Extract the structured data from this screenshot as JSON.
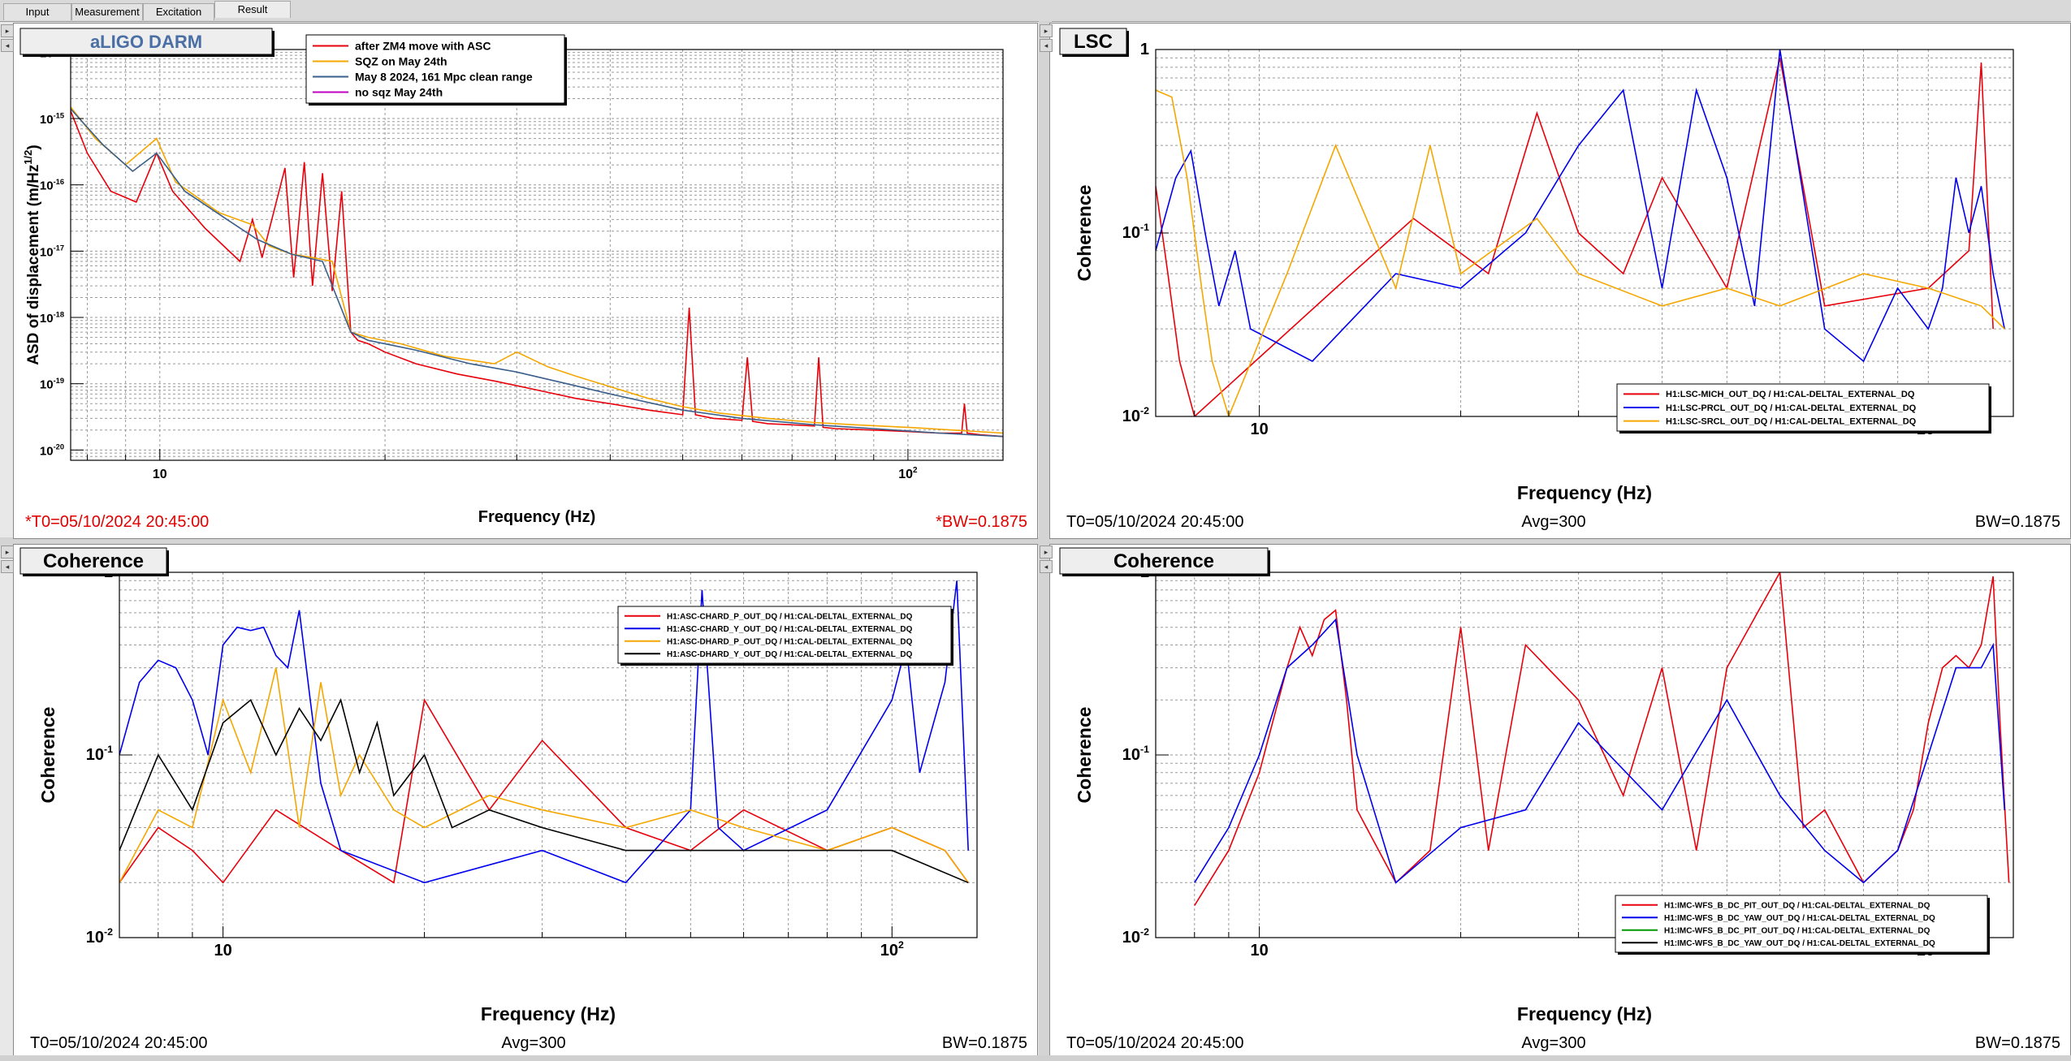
{
  "tabs": [
    "Input",
    "Measurement",
    "Excitation",
    "Result"
  ],
  "active_tab": "Result",
  "colors": {
    "red": "#e8000b",
    "orange": "#f5a700",
    "blue": "#0000ee",
    "steel": "#3a5f8a",
    "magenta": "#c000c0",
    "black": "#000000",
    "green": "#009900",
    "darkred": "#cc0000"
  },
  "panels": [
    {
      "title": "aLIGO DARM",
      "footer_left": "*T0=05/10/2024 20:45:00",
      "footer_center": "",
      "footer_right": "*BW=0.1875",
      "xlabel": "Frequency (Hz)",
      "ylabel": "ASD of displacement (m/Hz^{1/2})",
      "legend": [
        "after ZM4 move with ASC",
        "SQZ on May 24th",
        "May 8 2024, 161 Mpc clean range",
        "no sqz May 24th"
      ]
    },
    {
      "title": "LSC",
      "footer_left": "T0=05/10/2024 20:45:00",
      "footer_center": "Avg=300",
      "footer_right": "BW=0.1875",
      "xlabel": "Frequency (Hz)",
      "ylabel": "Coherence",
      "legend": [
        "H1:LSC-MICH_OUT_DQ / H1:CAL-DELTAL_EXTERNAL_DQ",
        "H1:LSC-PRCL_OUT_DQ / H1:CAL-DELTAL_EXTERNAL_DQ",
        "H1:LSC-SRCL_OUT_DQ / H1:CAL-DELTAL_EXTERNAL_DQ"
      ]
    },
    {
      "title": "Coherence",
      "footer_left": "T0=05/10/2024 20:45:00",
      "footer_center": "Avg=300",
      "footer_right": "BW=0.1875",
      "xlabel": "Frequency (Hz)",
      "ylabel": "Coherence",
      "legend": [
        "H1:ASC-CHARD_P_OUT_DQ / H1:CAL-DELTAL_EXTERNAL_DQ",
        "H1:ASC-CHARD_Y_OUT_DQ / H1:CAL-DELTAL_EXTERNAL_DQ",
        "H1:ASC-DHARD_P_OUT_DQ / H1:CAL-DELTAL_EXTERNAL_DQ",
        "H1:ASC-DHARD_Y_OUT_DQ / H1:CAL-DELTAL_EXTERNAL_DQ"
      ]
    },
    {
      "title": "Coherence",
      "footer_left": "T0=05/10/2024 20:45:00",
      "footer_center": "Avg=300",
      "footer_right": "BW=0.1875",
      "xlabel": "Frequency (Hz)",
      "ylabel": "Coherence",
      "legend": [
        "H1:IMC-WFS_B_DC_PIT_OUT_DQ / H1:CAL-DELTAL_EXTERNAL_DQ",
        "H1:IMC-WFS_B_DC_YAW_OUT_DQ / H1:CAL-DELTAL_EXTERNAL_DQ",
        "H1:IMC-WFS_B_DC_PIT_OUT_DQ / H1:CAL-DELTAL_EXTERNAL_DQ",
        "H1:IMC-WFS_B_DC_YAW_OUT_DQ / H1:CAL-DELTAL_EXTERNAL_DQ"
      ]
    }
  ],
  "chart_data": [
    {
      "type": "line",
      "title": "aLIGO DARM",
      "xlabel": "Frequency (Hz)",
      "ylabel": "ASD of displacement (m/Hz^{1/2})",
      "x_scale": "log",
      "y_scale": "log",
      "xlim": [
        7.6,
        134
      ],
      "ylim": [
        7e-21,
        1.1e-14
      ],
      "x_ticks": [
        "10",
        "10^2"
      ],
      "y_ticks": [
        "10^-14",
        "10^-15",
        "10^-16",
        "10^-17",
        "10^-18",
        "10^-19",
        "10^-20"
      ],
      "grid": true,
      "legend_position": "top-left",
      "series": [
        {
          "name": "after ZM4 move with ASC",
          "color": "#e8000b",
          "x": [
            7.6,
            8,
            8.6,
            9.3,
            9.9,
            10.4,
            11.5,
            12.8,
            13.3,
            13.7,
            14.7,
            15.1,
            15.6,
            16,
            16.5,
            17,
            17.5,
            18,
            18.4,
            19,
            20,
            22,
            25,
            28,
            32,
            36,
            40,
            45,
            50,
            51,
            52,
            55,
            60,
            61,
            62,
            65,
            70,
            75,
            76,
            77,
            80,
            90,
            100,
            110,
            118,
            119,
            120,
            125,
            134
          ],
          "y": [
            1.3e-15,
            3e-16,
            8e-17,
            5.5e-17,
            3e-16,
            8e-17,
            2.2e-17,
            7e-18,
            3e-17,
            8e-18,
            1.8e-16,
            4e-18,
            2.2e-16,
            3e-18,
            1.5e-16,
            2.5e-18,
            8e-17,
            6e-19,
            4.5e-19,
            4e-19,
            3e-19,
            2e-19,
            1.4e-19,
            1.1e-19,
            8e-20,
            6e-20,
            5e-20,
            4e-20,
            3.4e-20,
            1.4e-18,
            3.4e-20,
            3e-20,
            2.8e-20,
            2.5e-19,
            2.7e-20,
            2.5e-20,
            2.4e-20,
            2.3e-20,
            2.5e-19,
            2.2e-20,
            2.1e-20,
            2e-20,
            1.9e-20,
            1.8e-20,
            1.8e-20,
            5e-20,
            1.8e-20,
            1.7e-20,
            1.6e-20
          ]
        },
        {
          "name": "SQZ on May 24th",
          "color": "#f5a700",
          "x": [
            7.6,
            8.2,
            9,
            9.9,
            10.5,
            12,
            13.3,
            14,
            15,
            16,
            17,
            18,
            19,
            21,
            24,
            28,
            30,
            33,
            36,
            40,
            45,
            50,
            56,
            65,
            75,
            85,
            100,
            115,
            134
          ],
          "y": [
            1.5e-15,
            5e-16,
            2e-16,
            5e-16,
            1.1e-16,
            3.8e-17,
            2.5e-17,
            1.2e-17,
            9e-18,
            8e-18,
            7e-18,
            6e-19,
            5e-19,
            4e-19,
            2.6e-19,
            2e-19,
            3e-19,
            1.8e-19,
            1.3e-19,
            9e-20,
            6e-20,
            4.5e-20,
            3.6e-20,
            3e-20,
            2.6e-20,
            2.4e-20,
            2.2e-20,
            2e-20,
            1.8e-20
          ]
        },
        {
          "name": "May 8 2024, 161 Mpc clean range",
          "color": "#3a5f8a",
          "x": [
            7.6,
            8.4,
            9.2,
            9.9,
            10.8,
            12.3,
            13.5,
            15,
            16.5,
            18,
            19,
            22,
            26,
            30,
            35,
            40,
            50,
            60,
            75,
            90,
            110,
            134
          ],
          "y": [
            1.4e-15,
            4e-16,
            1.6e-16,
            3e-16,
            8e-17,
            3e-17,
            1.5e-17,
            9e-18,
            7e-18,
            6e-19,
            4.5e-19,
            3.2e-19,
            2e-19,
            1.5e-19,
            1e-19,
            7e-20,
            4e-20,
            3e-20,
            2.4e-20,
            2.1e-20,
            1.8e-20,
            1.6e-20
          ]
        },
        {
          "name": "no sqz May 24th",
          "color": "#c000c0",
          "x": [],
          "y": []
        }
      ]
    },
    {
      "type": "line",
      "title": "LSC",
      "xlabel": "Frequency (Hz)",
      "ylabel": "Coherence",
      "x_scale": "log",
      "y_scale": "log",
      "xlim": [
        7,
        134
      ],
      "ylim": [
        0.01,
        1
      ],
      "x_ticks": [
        "10",
        "10^2"
      ],
      "y_ticks": [
        "1",
        "10^-1",
        "10^-2"
      ],
      "grid": true,
      "legend_position": "bottom-right",
      "series": [
        {
          "name": "H1:LSC-MICH_OUT_DQ / H1:CAL-DELTAL_EXTERNAL_DQ",
          "color": "#e8000b",
          "x": [
            7,
            7.3,
            7.6,
            8,
            13,
            17,
            22,
            26,
            30,
            35,
            40,
            50,
            60,
            70,
            100,
            115,
            120,
            125
          ],
          "y": [
            0.18,
            0.06,
            0.02,
            0.01,
            0.05,
            0.12,
            0.06,
            0.45,
            0.1,
            0.06,
            0.2,
            0.05,
            0.9,
            0.04,
            0.05,
            0.08,
            0.85,
            0.03
          ]
        },
        {
          "name": "H1:LSC-PRCL_OUT_DQ / H1:CAL-DELTAL_EXTERNAL_DQ",
          "color": "#0000ee",
          "x": [
            7,
            7.5,
            7.9,
            8.3,
            8.7,
            9.2,
            9.7,
            12,
            16,
            20,
            25,
            30,
            35,
            40,
            45,
            50,
            55,
            60,
            70,
            80,
            90,
            100,
            105,
            110,
            115,
            120,
            125,
            130
          ],
          "y": [
            0.08,
            0.2,
            0.28,
            0.1,
            0.04,
            0.08,
            0.03,
            0.02,
            0.06,
            0.05,
            0.1,
            0.3,
            0.6,
            0.05,
            0.6,
            0.2,
            0.04,
            1.0,
            0.03,
            0.02,
            0.05,
            0.03,
            0.05,
            0.2,
            0.1,
            0.18,
            0.06,
            0.03
          ]
        },
        {
          "name": "H1:LSC-SRCL_OUT_DQ / H1:CAL-DELTAL_EXTERNAL_DQ",
          "color": "#f5a700",
          "x": [
            7,
            7.4,
            7.8,
            8.2,
            8.5,
            9,
            11,
            13,
            16,
            18,
            20,
            26,
            30,
            40,
            50,
            60,
            80,
            100,
            120,
            130
          ],
          "y": [
            0.6,
            0.55,
            0.2,
            0.05,
            0.02,
            0.01,
            0.06,
            0.3,
            0.05,
            0.3,
            0.06,
            0.12,
            0.06,
            0.04,
            0.05,
            0.04,
            0.06,
            0.05,
            0.04,
            0.03
          ]
        }
      ]
    },
    {
      "type": "line",
      "title": "Coherence",
      "xlabel": "Frequency (Hz)",
      "ylabel": "Coherence",
      "x_scale": "log",
      "y_scale": "log",
      "xlim": [
        7,
        134
      ],
      "ylim": [
        0.01,
        1
      ],
      "x_ticks": [
        "10",
        "10^2"
      ],
      "y_ticks": [
        "1",
        "10^-1",
        "10^-2"
      ],
      "grid": true,
      "legend_position": "top-right",
      "series": [
        {
          "name": "H1:ASC-CHARD_P_OUT_DQ / H1:CAL-DELTAL_EXTERNAL_DQ",
          "color": "#e8000b",
          "x": [
            7,
            8,
            9,
            10,
            12,
            15,
            18,
            20,
            25,
            30,
            40,
            50,
            60,
            80,
            100,
            120,
            130
          ],
          "y": [
            0.02,
            0.04,
            0.03,
            0.02,
            0.05,
            0.03,
            0.02,
            0.2,
            0.05,
            0.12,
            0.04,
            0.03,
            0.05,
            0.03,
            0.04,
            0.03,
            0.02
          ]
        },
        {
          "name": "H1:ASC-CHARD_Y_OUT_DQ / H1:CAL-DELTAL_EXTERNAL_DQ",
          "color": "#0000ee",
          "x": [
            7,
            7.5,
            8,
            8.5,
            9,
            9.5,
            10,
            10.5,
            11,
            11.5,
            12,
            12.5,
            13,
            13.5,
            14,
            15,
            20,
            30,
            40,
            50,
            52,
            55,
            60,
            80,
            100,
            105,
            110,
            120,
            125,
            130
          ],
          "y": [
            0.1,
            0.25,
            0.33,
            0.3,
            0.2,
            0.1,
            0.4,
            0.5,
            0.48,
            0.5,
            0.35,
            0.3,
            0.62,
            0.2,
            0.07,
            0.03,
            0.02,
            0.03,
            0.02,
            0.05,
            0.8,
            0.04,
            0.03,
            0.05,
            0.2,
            0.4,
            0.08,
            0.25,
            0.9,
            0.03
          ]
        },
        {
          "name": "H1:ASC-DHARD_P_OUT_DQ / H1:CAL-DELTAL_EXTERNAL_DQ",
          "color": "#f5a700",
          "x": [
            7,
            8,
            9,
            10,
            11,
            12,
            13,
            14,
            15,
            16,
            18,
            20,
            25,
            30,
            40,
            50,
            60,
            80,
            100,
            120,
            130
          ],
          "y": [
            0.02,
            0.05,
            0.04,
            0.2,
            0.08,
            0.3,
            0.04,
            0.25,
            0.06,
            0.1,
            0.05,
            0.04,
            0.06,
            0.05,
            0.04,
            0.05,
            0.04,
            0.03,
            0.04,
            0.03,
            0.02
          ]
        },
        {
          "name": "H1:ASC-DHARD_Y_OUT_DQ / H1:CAL-DELTAL_EXTERNAL_DQ",
          "color": "#000000",
          "x": [
            7,
            8,
            9,
            10,
            11,
            12,
            13,
            14,
            15,
            16,
            17,
            18,
            20,
            22,
            25,
            30,
            40,
            60,
            100,
            130
          ],
          "y": [
            0.03,
            0.1,
            0.05,
            0.15,
            0.2,
            0.1,
            0.18,
            0.12,
            0.2,
            0.08,
            0.15,
            0.06,
            0.1,
            0.04,
            0.05,
            0.04,
            0.03,
            0.03,
            0.03,
            0.02
          ]
        }
      ]
    },
    {
      "type": "line",
      "title": "Coherence",
      "xlabel": "Frequency (Hz)",
      "ylabel": "Coherence",
      "x_scale": "log",
      "y_scale": "log",
      "xlim": [
        7,
        134
      ],
      "ylim": [
        0.01,
        1
      ],
      "x_ticks": [
        "10",
        "10^2"
      ],
      "y_ticks": [
        "1",
        "10^-1",
        "10^-2"
      ],
      "grid": true,
      "legend_position": "bottom-right",
      "series": [
        {
          "name": "H1:IMC-WFS_B_DC_PIT_OUT_DQ / H1:CAL-DELTAL_EXTERNAL_DQ",
          "color": "#e8000b",
          "x": [
            8,
            9,
            10,
            11,
            11.5,
            12,
            12.5,
            13,
            13.5,
            14,
            16,
            18,
            20,
            22,
            25,
            30,
            35,
            40,
            45,
            50,
            60,
            65,
            70,
            80,
            90,
            95,
            100,
            105,
            110,
            115,
            120,
            125,
            128,
            132
          ],
          "y": [
            0.015,
            0.03,
            0.08,
            0.3,
            0.5,
            0.35,
            0.55,
            0.62,
            0.2,
            0.05,
            0.02,
            0.03,
            0.5,
            0.03,
            0.4,
            0.2,
            0.06,
            0.3,
            0.03,
            0.3,
            1.0,
            0.04,
            0.05,
            0.02,
            0.03,
            0.05,
            0.15,
            0.3,
            0.35,
            0.3,
            0.4,
            0.95,
            0.15,
            0.02
          ]
        },
        {
          "name": "H1:IMC-WFS_B_DC_YAW_OUT_DQ / H1:CAL-DELTAL_EXTERNAL_DQ",
          "color": "#0000ee",
          "x": [
            8,
            9,
            10,
            11,
            12,
            13,
            14,
            16,
            20,
            25,
            30,
            40,
            50,
            60,
            70,
            80,
            90,
            100,
            110,
            120,
            125,
            130
          ],
          "y": [
            0.02,
            0.04,
            0.1,
            0.3,
            0.4,
            0.55,
            0.1,
            0.02,
            0.04,
            0.05,
            0.15,
            0.05,
            0.2,
            0.06,
            0.03,
            0.02,
            0.03,
            0.1,
            0.3,
            0.3,
            0.4,
            0.05
          ]
        },
        {
          "name": "H1:IMC-WFS_B_DC_PIT_OUT_DQ / H1:CAL-DELTAL_EXTERNAL_DQ",
          "color": "#009900",
          "x": [],
          "y": []
        },
        {
          "name": "H1:IMC-WFS_B_DC_YAW_OUT_DQ / H1:CAL-DELTAL_EXTERNAL_DQ",
          "color": "#000000",
          "x": [],
          "y": []
        }
      ]
    }
  ]
}
